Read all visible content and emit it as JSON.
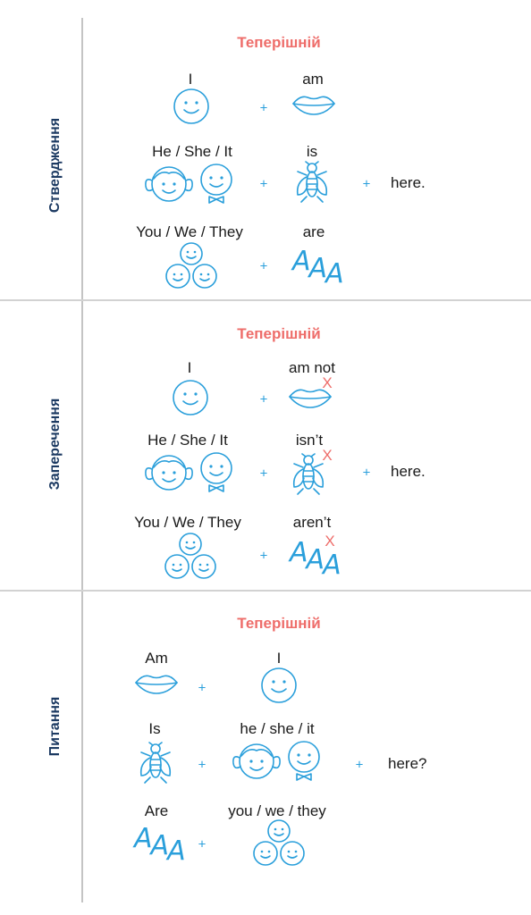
{
  "colors": {
    "accent": "#ee6d6a",
    "icon": "#2a9fdb",
    "side": "#1c3a62"
  },
  "sections": [
    {
      "side_label": "Ствердження",
      "heading": "Теперішній",
      "rows": [
        {
          "subject": "I",
          "verb": "am"
        },
        {
          "subject": "He / She / It",
          "verb": "is",
          "tail": "here."
        },
        {
          "subject": "You / We / They",
          "verb": "are"
        }
      ]
    },
    {
      "side_label": "Заперечення",
      "heading": "Теперішній",
      "rows": [
        {
          "subject": "I",
          "verb": "am not"
        },
        {
          "subject": "He / She / It",
          "verb": "isn’t",
          "tail": "here."
        },
        {
          "subject": "You / We / They",
          "verb": "aren’t"
        }
      ]
    },
    {
      "side_label": "Питання",
      "heading": "Теперішній",
      "rows": [
        {
          "verb": "Am",
          "subject": "I"
        },
        {
          "verb": "Is",
          "subject": "he / she / it",
          "tail": "here?"
        },
        {
          "verb": "Are",
          "subject": "you / we / they"
        }
      ]
    }
  ],
  "symbols": {
    "plus": "+",
    "cross": "X",
    "aaa": [
      "A",
      "A",
      "A"
    ]
  }
}
